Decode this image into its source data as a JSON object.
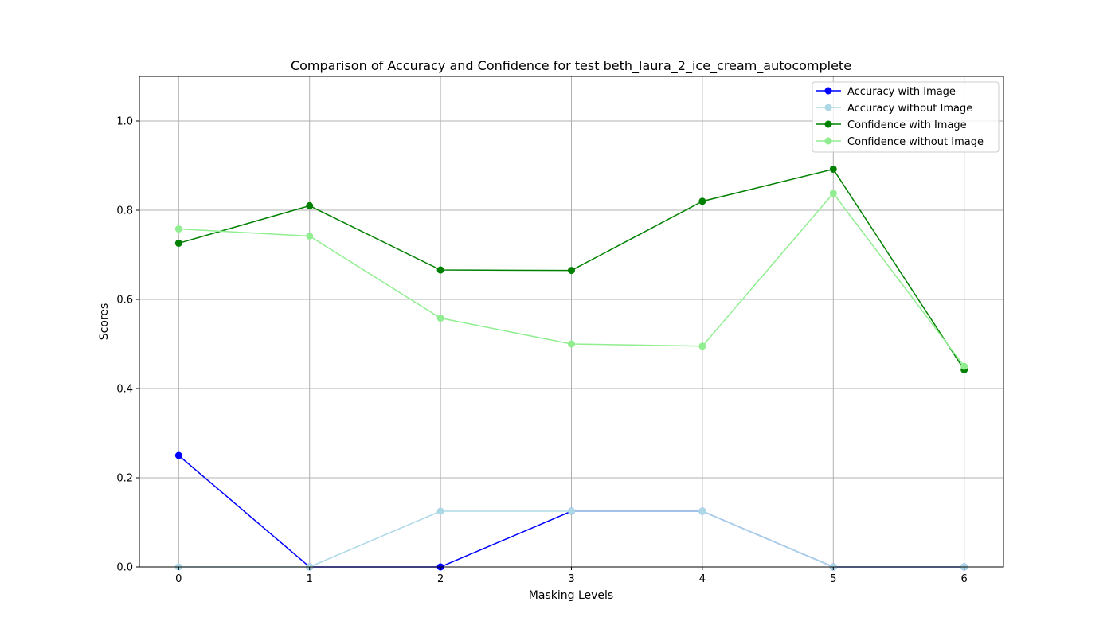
{
  "chart_data": {
    "type": "line",
    "title": "Comparison of Accuracy and Confidence for test beth_laura_2_ice_cream_autocomplete",
    "xlabel": "Masking Levels",
    "ylabel": "Scores",
    "x": [
      0,
      1,
      2,
      3,
      4,
      5,
      6
    ],
    "xlim": [
      -0.3,
      6.3
    ],
    "ylim": [
      0,
      1.1
    ],
    "xticks": [
      "0",
      "1",
      "2",
      "3",
      "4",
      "5",
      "6"
    ],
    "yticks": [
      "0.0",
      "0.2",
      "0.4",
      "0.6",
      "0.8",
      "1.0"
    ],
    "grid": true,
    "legend_position": "top-right",
    "series": [
      {
        "name": "Accuracy with Image",
        "color": "#0000ff",
        "values": [
          0.25,
          0.0,
          0.0,
          0.125,
          0.125,
          0.0,
          0.0
        ]
      },
      {
        "name": "Accuracy without Image",
        "color": "#add8e6",
        "values": [
          0.0,
          0.0,
          0.125,
          0.125,
          0.125,
          0.0,
          0.0
        ]
      },
      {
        "name": "Confidence with Image",
        "color": "#008000",
        "values": [
          0.726,
          0.81,
          0.666,
          0.665,
          0.82,
          0.892,
          0.442
        ]
      },
      {
        "name": "Confidence without Image",
        "color": "#90ee90",
        "values": [
          0.758,
          0.742,
          0.558,
          0.5,
          0.495,
          0.838,
          0.45
        ]
      }
    ]
  }
}
